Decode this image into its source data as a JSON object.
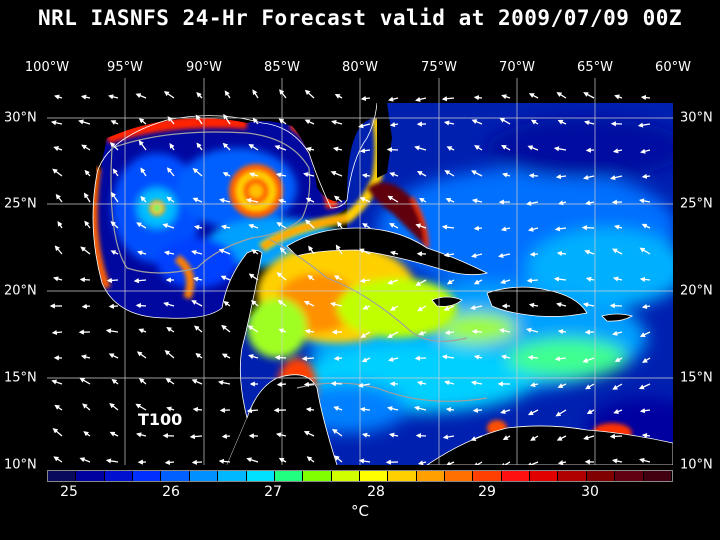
{
  "title": "NRL IASNFS  24-Hr Forecast valid at 2009/07/09 00Z",
  "model_label": "T100",
  "lon_labels": [
    "100°W",
    "95°W",
    "90°W",
    "85°W",
    "80°W",
    "75°W",
    "70°W",
    "65°W",
    "60°W"
  ],
  "lat_labels": [
    "30°N",
    "25°N",
    "20°N",
    "15°N",
    "10°N"
  ],
  "colorbar": {
    "tick_labels": [
      "25",
      "26",
      "27",
      "28",
      "29",
      "30"
    ],
    "unit": "°C",
    "colors": [
      "#0a0a5a",
      "#0000a0",
      "#0010d0",
      "#0030ff",
      "#0060ff",
      "#0090ff",
      "#00b8ff",
      "#00e0ff",
      "#20ff80",
      "#80ff00",
      "#d0ff00",
      "#ffff00",
      "#ffd000",
      "#ffa000",
      "#ff7000",
      "#ff4000",
      "#ff1010",
      "#e00000",
      "#b00000",
      "#800000",
      "#600010",
      "#400010"
    ]
  },
  "map": {
    "variable": "sea surface temperature",
    "region": "Gulf of Mexico and Caribbean Sea",
    "lon_range": [
      -100,
      -60
    ],
    "lat_range": [
      10,
      31
    ]
  }
}
